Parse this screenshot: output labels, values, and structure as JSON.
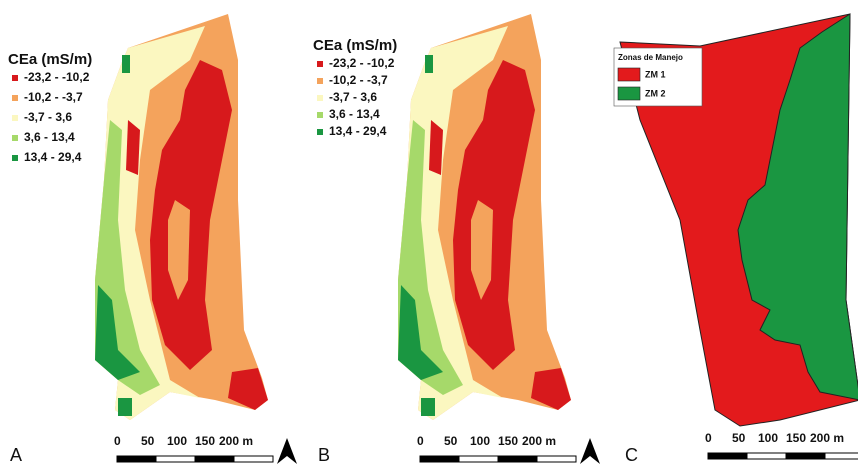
{
  "panels": [
    {
      "label": "A",
      "legend": {
        "title": "CEa (mS/m)",
        "items": [
          {
            "label": "-23,2 - -10,2",
            "color": "#d7191c"
          },
          {
            "label": "-10,2 - -3,7",
            "color": "#f4a35c"
          },
          {
            "label": "-3,7 - 3,6",
            "color": "#fbf7c0"
          },
          {
            "label": "3,6 - 13,4",
            "color": "#a6d96a"
          },
          {
            "label": "13,4 - 29,4",
            "color": "#1a9641"
          }
        ]
      },
      "scale_bar": [
        "0",
        "50",
        "100",
        "150",
        "200 m"
      ]
    },
    {
      "label": "B",
      "legend": {
        "title": "CEa (mS/m)",
        "items": [
          {
            "label": "-23,2 - -10,2",
            "color": "#d7191c"
          },
          {
            "label": "-10,2 - -3,7",
            "color": "#f4a35c"
          },
          {
            "label": "-3,7 - 3,6",
            "color": "#fbf7c0"
          },
          {
            "label": "3,6 - 13,4",
            "color": "#a6d96a"
          },
          {
            "label": "13,4 - 29,4",
            "color": "#1a9641"
          }
        ]
      },
      "scale_bar": [
        "0",
        "50",
        "100",
        "150",
        "200 m"
      ]
    },
    {
      "label": "C",
      "legend": {
        "title": "Zonas de Manejo",
        "items": [
          {
            "label": "ZM 1",
            "color": "#e31a1c"
          },
          {
            "label": "ZM 2",
            "color": "#1a9641"
          }
        ]
      },
      "scale_bar": [
        "0",
        "50",
        "100",
        "150",
        "200 m"
      ]
    }
  ]
}
